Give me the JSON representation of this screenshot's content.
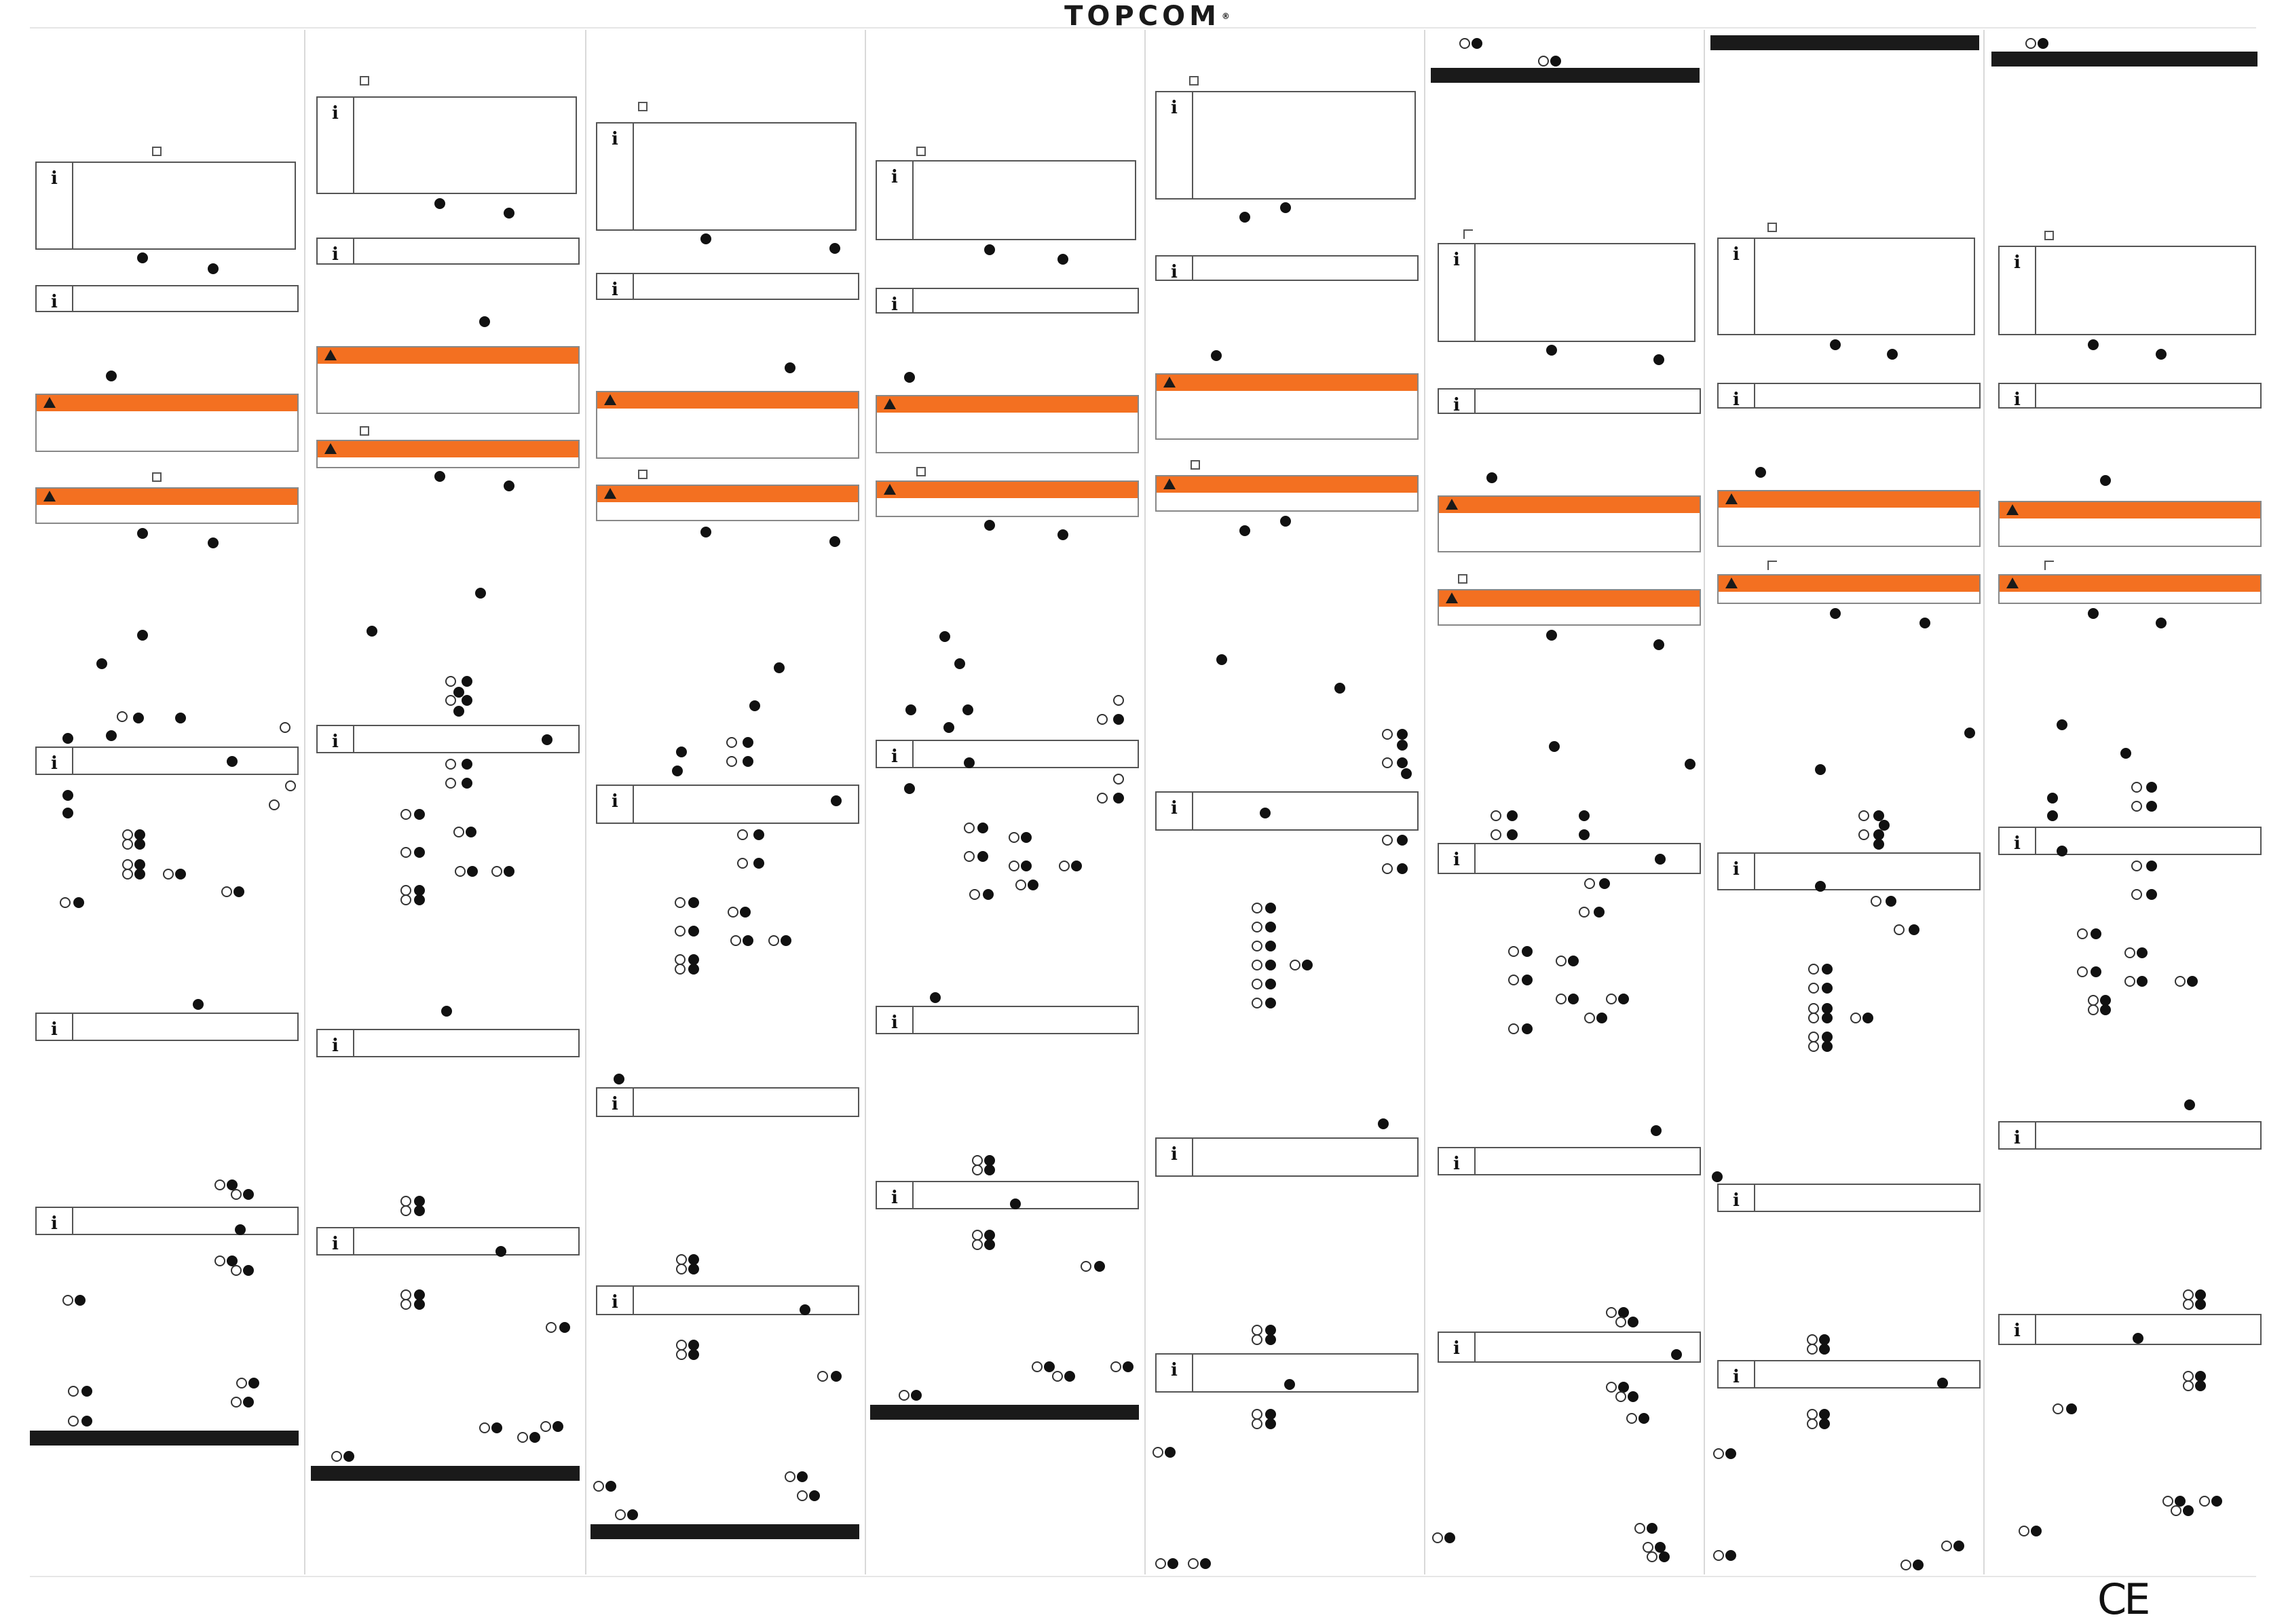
{
  "header": {
    "brand": "TOPCOM",
    "registered_mark": "®"
  },
  "footer": {
    "conformity_mark": "CE"
  },
  "icons": {
    "info": "i",
    "warning": "warning-triangle-icon",
    "ok_key": "ok-key-icon",
    "up_key": "up-arrow-key-icon",
    "down_key": "down-arrow-key-icon",
    "edit_key": "pencil-key-icon",
    "back_key": "back-key-icon"
  },
  "colors": {
    "accent": "#f37021",
    "section_bar": "#1a1a1a",
    "rule": "#d9d9d9"
  },
  "columns": [
    "column-1",
    "column-2",
    "column-3",
    "column-4",
    "column-5",
    "column-6",
    "column-7",
    "column-8"
  ]
}
